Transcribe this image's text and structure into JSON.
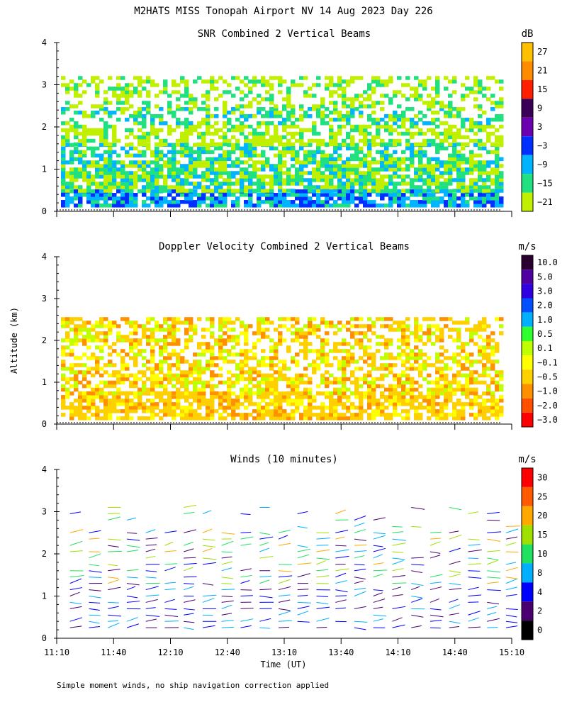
{
  "figure": {
    "title": "M2HATS MISS Tonopah Airport NV  14 Aug 2023 Day 226",
    "y_axis_label": "Altitude (km)",
    "x_axis_label": "Time (UT)",
    "footnote": "Simple moment winds, no ship navigation correction applied"
  },
  "chart_data": [
    {
      "type": "heatmap",
      "title": "SNR Combined 2 Vertical Beams",
      "xlabel": "",
      "ylabel": "Altitude (km)",
      "xlim": [
        "11:10",
        "15:10"
      ],
      "ylim": [
        0,
        4
      ],
      "y_ticks": [
        "0",
        "1",
        "2",
        "3",
        "4"
      ],
      "colorbar": {
        "unit": "dB",
        "ticks": [
          "27",
          "21",
          "15",
          "9",
          "3",
          "−3",
          "−9",
          "−15",
          "−21"
        ],
        "colors": [
          "#ffc000",
          "#ff8c00",
          "#ff2000",
          "#3a0058",
          "#6a00b0",
          "#0030ff",
          "#00b4ff",
          "#20e080",
          "#c0f000"
        ]
      },
      "layers": [
        {
          "alt_km": [
            0.1,
            0.4
          ],
          "value_db": -9
        },
        {
          "alt_km": [
            0.4,
            1.2
          ],
          "value_db": -18
        },
        {
          "alt_km": [
            1.2,
            1.5
          ],
          "value_db": -15
        },
        {
          "alt_km": [
            1.5,
            2.0
          ],
          "value_db": -20
        },
        {
          "alt_km": [
            2.0,
            2.4
          ],
          "value_db": -15
        },
        {
          "alt_km": [
            2.4,
            3.2
          ],
          "value_db": -20
        }
      ]
    },
    {
      "type": "heatmap",
      "title": "Doppler Velocity Combined 2 Vertical Beams",
      "xlabel": "",
      "ylabel": "Altitude (km)",
      "xlim": [
        "11:10",
        "15:10"
      ],
      "ylim": [
        0,
        4
      ],
      "y_ticks": [
        "0",
        "1",
        "2",
        "3",
        "4"
      ],
      "colorbar": {
        "unit": "m/s",
        "ticks": [
          "10.0",
          "5.0",
          "3.0",
          "2.0",
          "1.0",
          "0.5",
          "0.1",
          "−0.1",
          "−0.5",
          "−1.0",
          "−2.0",
          "−3.0"
        ],
        "colors": [
          "#2a0030",
          "#5000a0",
          "#3000e0",
          "#0050ff",
          "#00b0ff",
          "#30ff30",
          "#c0ff00",
          "#ffff00",
          "#ffd000",
          "#ff9000",
          "#ff5000",
          "#ff0000"
        ]
      },
      "layers": [
        {
          "alt_km": [
            0.1,
            0.7
          ],
          "value_ms": -0.5
        },
        {
          "alt_km": [
            0.7,
            1.2
          ],
          "value_ms": -0.3
        },
        {
          "alt_km": [
            1.2,
            2.5
          ],
          "value_ms": -0.5
        }
      ]
    },
    {
      "type": "scatter",
      "title": "Winds (10 minutes)",
      "xlabel": "Time (UT)",
      "ylabel": "Altitude (km)",
      "xlim": [
        "11:10",
        "15:10"
      ],
      "ylim": [
        0,
        4
      ],
      "x_ticks": [
        "11:10",
        "11:40",
        "12:10",
        "12:40",
        "13:10",
        "13:40",
        "14:10",
        "14:40",
        "15:10"
      ],
      "y_ticks": [
        "0",
        "1",
        "2",
        "3",
        "4"
      ],
      "colorbar": {
        "unit": "m/s",
        "ticks": [
          "30",
          "25",
          "20",
          "15",
          "10",
          "8",
          "4",
          "2",
          "0"
        ],
        "colors": [
          "#ff0000",
          "#ff5a00",
          "#ffa800",
          "#a0e000",
          "#20e060",
          "#00b0ff",
          "#0000ff",
          "#4a0070",
          "#000000"
        ]
      },
      "interval_minutes": 10,
      "profile_times": [
        "11:17",
        "11:27",
        "11:37",
        "11:47",
        "11:57",
        "12:07",
        "12:17",
        "12:27",
        "12:37",
        "12:47",
        "12:57",
        "13:07",
        "13:17",
        "13:27",
        "13:37",
        "13:47",
        "13:57",
        "14:07",
        "14:17",
        "14:27",
        "14:37",
        "14:47",
        "14:57",
        "15:07"
      ]
    }
  ]
}
